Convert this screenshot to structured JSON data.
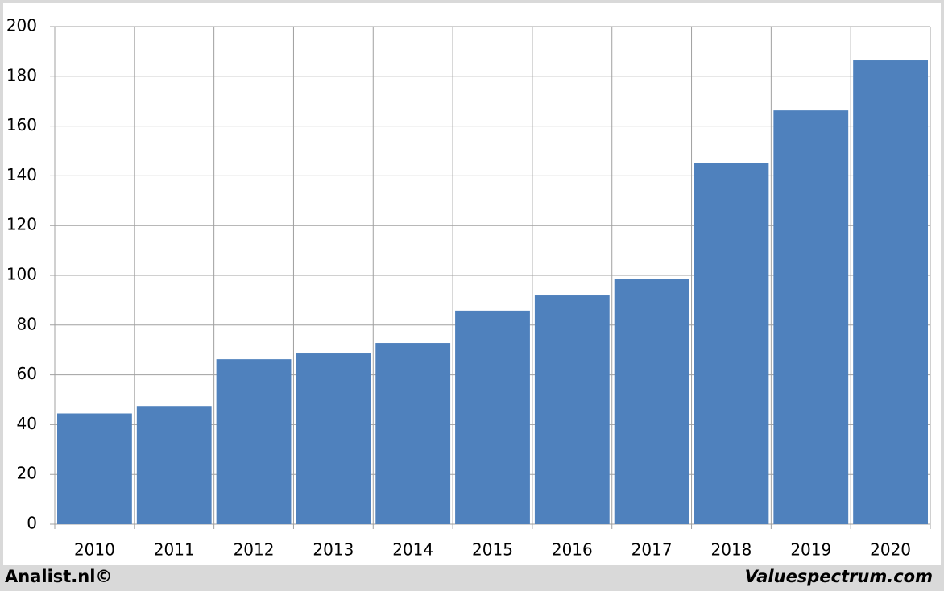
{
  "chart_data": {
    "type": "bar",
    "categories": [
      "2010",
      "2011",
      "2012",
      "2013",
      "2014",
      "2015",
      "2016",
      "2017",
      "2018",
      "2019",
      "2020"
    ],
    "values": [
      44.5,
      47.5,
      66.3,
      68.6,
      72.8,
      85.8,
      91.9,
      98.7,
      145,
      166.3,
      186.4
    ],
    "color": "#4f81bd",
    "ylim": [
      0,
      200
    ],
    "yticks": [
      0,
      20,
      40,
      60,
      80,
      100,
      120,
      140,
      160,
      180,
      200
    ],
    "grid": true
  },
  "footer": {
    "left": "Analist.nl©",
    "right": "Valuespectrum.com"
  }
}
